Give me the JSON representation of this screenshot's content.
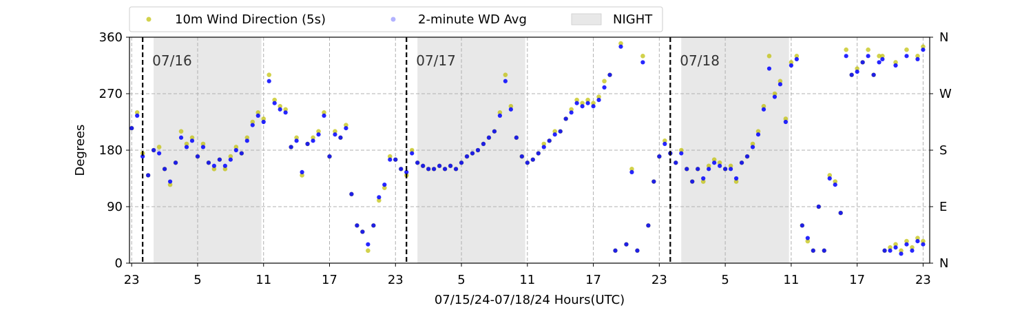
{
  "chart_data": {
    "type": "scatter",
    "title": "",
    "xlabel": "07/15/24-07/18/24  Hours(UTC)",
    "ylabel": "Degrees",
    "xlim": [
      -0.2,
      72.6
    ],
    "ylim": [
      0,
      360
    ],
    "x_unit": "hours since 07/15/24 23:00 UTC",
    "x_ticks": [
      0,
      6,
      12,
      18,
      24,
      30,
      36,
      42,
      48,
      54,
      60,
      66,
      72
    ],
    "x_tick_labels": [
      "23",
      "5",
      "11",
      "17",
      "23",
      "5",
      "11",
      "17",
      "23",
      "5",
      "11",
      "17",
      "23"
    ],
    "y_ticks": [
      0,
      90,
      180,
      270,
      360
    ],
    "y_tick_labels": [
      "0",
      "90",
      "180",
      "270",
      "360"
    ],
    "y2_tick_labels": [
      "N",
      "E",
      "S",
      "W",
      "N"
    ],
    "grid": true,
    "legend_position": "top-left, above plot",
    "legend": [
      {
        "label": "10m Wind Direction (5s)",
        "color": "#bfbf00",
        "marker": "dot"
      },
      {
        "label": "2-minute WD Avg",
        "color": "#0000ff",
        "marker": "dot"
      },
      {
        "label": "NIGHT",
        "color": "#d9d9d9",
        "marker": "patch"
      }
    ],
    "day_markers": [
      {
        "x": 1.0,
        "label": "07/16"
      },
      {
        "x": 25.0,
        "label": "07/17"
      },
      {
        "x": 49.0,
        "label": "07/18"
      }
    ],
    "night_spans": [
      [
        2,
        11.8
      ],
      [
        26,
        35.8
      ],
      [
        50,
        59.8
      ]
    ],
    "series": [
      {
        "name": "10m Wind Direction (5s)",
        "color": "#bfbf00",
        "points": [
          [
            0,
            215
          ],
          [
            0.5,
            240
          ],
          [
            1,
            175
          ],
          [
            1.5,
            140
          ],
          [
            2,
            180
          ],
          [
            2.5,
            185
          ],
          [
            3,
            150
          ],
          [
            3.5,
            125
          ],
          [
            4,
            160
          ],
          [
            4.5,
            210
          ],
          [
            5,
            190
          ],
          [
            5.5,
            200
          ],
          [
            6,
            170
          ],
          [
            6.5,
            190
          ],
          [
            7,
            160
          ],
          [
            7.5,
            150
          ],
          [
            8,
            165
          ],
          [
            8.5,
            150
          ],
          [
            9,
            170
          ],
          [
            9.5,
            185
          ],
          [
            10,
            175
          ],
          [
            10.5,
            200
          ],
          [
            11,
            225
          ],
          [
            11.5,
            240
          ],
          [
            12,
            230
          ],
          [
            12.5,
            300
          ],
          [
            13,
            260
          ],
          [
            13.5,
            250
          ],
          [
            14,
            245
          ],
          [
            14.5,
            185
          ],
          [
            15,
            200
          ],
          [
            15.5,
            140
          ],
          [
            16,
            190
          ],
          [
            16.5,
            200
          ],
          [
            17,
            210
          ],
          [
            17.5,
            240
          ],
          [
            18,
            170
          ],
          [
            18.5,
            210
          ],
          [
            19,
            200
          ],
          [
            19.5,
            220
          ],
          [
            20,
            110
          ],
          [
            20.5,
            60
          ],
          [
            21,
            50
          ],
          [
            21.5,
            20
          ],
          [
            22,
            60
          ],
          [
            22.5,
            100
          ],
          [
            23,
            120
          ],
          [
            23.5,
            170
          ],
          [
            24,
            165
          ],
          [
            24.5,
            150
          ],
          [
            25,
            140
          ],
          [
            25.5,
            180
          ],
          [
            26,
            160
          ],
          [
            26.5,
            155
          ],
          [
            27,
            150
          ],
          [
            27.5,
            150
          ],
          [
            28,
            155
          ],
          [
            28.5,
            150
          ],
          [
            29,
            155
          ],
          [
            29.5,
            150
          ],
          [
            30,
            160
          ],
          [
            30.5,
            170
          ],
          [
            31,
            175
          ],
          [
            31.5,
            180
          ],
          [
            32,
            190
          ],
          [
            32.5,
            200
          ],
          [
            33,
            210
          ],
          [
            33.5,
            240
          ],
          [
            34,
            300
          ],
          [
            34.5,
            250
          ],
          [
            35,
            200
          ],
          [
            35.5,
            170
          ],
          [
            36,
            160
          ],
          [
            36.5,
            165
          ],
          [
            37,
            175
          ],
          [
            37.5,
            190
          ],
          [
            38,
            195
          ],
          [
            38.5,
            210
          ],
          [
            39,
            210
          ],
          [
            39.5,
            230
          ],
          [
            40,
            245
          ],
          [
            40.5,
            260
          ],
          [
            41,
            255
          ],
          [
            41.5,
            260
          ],
          [
            42,
            255
          ],
          [
            42.5,
            265
          ],
          [
            43,
            290
          ],
          [
            43.5,
            300
          ],
          [
            44,
            20
          ],
          [
            44.5,
            350
          ],
          [
            45,
            30
          ],
          [
            45.5,
            150
          ],
          [
            46,
            20
          ],
          [
            46.5,
            330
          ],
          [
            47,
            60
          ],
          [
            47.5,
            130
          ],
          [
            48,
            170
          ],
          [
            48.5,
            195
          ],
          [
            49,
            175
          ],
          [
            49.5,
            160
          ],
          [
            50,
            180
          ],
          [
            50.5,
            150
          ],
          [
            51,
            130
          ],
          [
            51.5,
            150
          ],
          [
            52,
            130
          ],
          [
            52.5,
            155
          ],
          [
            53,
            165
          ],
          [
            53.5,
            160
          ],
          [
            54,
            150
          ],
          [
            54.5,
            155
          ],
          [
            55,
            130
          ],
          [
            55.5,
            160
          ],
          [
            56,
            170
          ],
          [
            56.5,
            190
          ],
          [
            57,
            210
          ],
          [
            57.5,
            250
          ],
          [
            58,
            330
          ],
          [
            58.5,
            270
          ],
          [
            59,
            290
          ],
          [
            59.5,
            230
          ],
          [
            60,
            320
          ],
          [
            60.5,
            330
          ],
          [
            61,
            60
          ],
          [
            61.5,
            35
          ],
          [
            62,
            20
          ],
          [
            62.5,
            90
          ],
          [
            63,
            20
          ],
          [
            63.5,
            140
          ],
          [
            64,
            130
          ],
          [
            64.5,
            80
          ],
          [
            65,
            340
          ],
          [
            65.5,
            300
          ],
          [
            66,
            310
          ],
          [
            66.5,
            320
          ],
          [
            67,
            340
          ],
          [
            67.5,
            300
          ],
          [
            68,
            330
          ],
          [
            68.5,
            20
          ],
          [
            69,
            25
          ],
          [
            69.5,
            30
          ],
          [
            70,
            20
          ],
          [
            70.5,
            35
          ],
          [
            71,
            25
          ],
          [
            71.5,
            40
          ],
          [
            72,
            35
          ],
          [
            68.3,
            330
          ],
          [
            69.5,
            320
          ],
          [
            70.5,
            340
          ],
          [
            71.5,
            330
          ],
          [
            72,
            345
          ]
        ]
      },
      {
        "name": "2-minute WD Avg",
        "color": "#0000ff",
        "points": [
          [
            0,
            215
          ],
          [
            0.5,
            235
          ],
          [
            1,
            170
          ],
          [
            1.5,
            140
          ],
          [
            2,
            180
          ],
          [
            2.5,
            175
          ],
          [
            3,
            150
          ],
          [
            3.5,
            130
          ],
          [
            4,
            160
          ],
          [
            4.5,
            200
          ],
          [
            5,
            185
          ],
          [
            5.5,
            195
          ],
          [
            6,
            170
          ],
          [
            6.5,
            185
          ],
          [
            7,
            160
          ],
          [
            7.5,
            155
          ],
          [
            8,
            165
          ],
          [
            8.5,
            155
          ],
          [
            9,
            165
          ],
          [
            9.5,
            180
          ],
          [
            10,
            175
          ],
          [
            10.5,
            195
          ],
          [
            11,
            220
          ],
          [
            11.5,
            235
          ],
          [
            12,
            225
          ],
          [
            12.5,
            290
          ],
          [
            13,
            255
          ],
          [
            13.5,
            245
          ],
          [
            14,
            240
          ],
          [
            14.5,
            185
          ],
          [
            15,
            195
          ],
          [
            15.5,
            145
          ],
          [
            16,
            190
          ],
          [
            16.5,
            195
          ],
          [
            17,
            205
          ],
          [
            17.5,
            235
          ],
          [
            18,
            170
          ],
          [
            18.5,
            205
          ],
          [
            19,
            200
          ],
          [
            19.5,
            215
          ],
          [
            20,
            110
          ],
          [
            20.5,
            60
          ],
          [
            21,
            50
          ],
          [
            21.5,
            30
          ],
          [
            22,
            60
          ],
          [
            22.5,
            105
          ],
          [
            23,
            125
          ],
          [
            23.5,
            165
          ],
          [
            24,
            165
          ],
          [
            24.5,
            150
          ],
          [
            25,
            145
          ],
          [
            25.5,
            175
          ],
          [
            26,
            160
          ],
          [
            26.5,
            155
          ],
          [
            27,
            150
          ],
          [
            27.5,
            150
          ],
          [
            28,
            155
          ],
          [
            28.5,
            150
          ],
          [
            29,
            155
          ],
          [
            29.5,
            150
          ],
          [
            30,
            160
          ],
          [
            30.5,
            170
          ],
          [
            31,
            175
          ],
          [
            31.5,
            180
          ],
          [
            32,
            190
          ],
          [
            32.5,
            200
          ],
          [
            33,
            210
          ],
          [
            33.5,
            235
          ],
          [
            34,
            290
          ],
          [
            34.5,
            245
          ],
          [
            35,
            200
          ],
          [
            35.5,
            170
          ],
          [
            36,
            160
          ],
          [
            36.5,
            165
          ],
          [
            37,
            175
          ],
          [
            37.5,
            185
          ],
          [
            38,
            195
          ],
          [
            38.5,
            205
          ],
          [
            39,
            210
          ],
          [
            39.5,
            230
          ],
          [
            40,
            240
          ],
          [
            40.5,
            255
          ],
          [
            41,
            250
          ],
          [
            41.5,
            255
          ],
          [
            42,
            250
          ],
          [
            42.5,
            260
          ],
          [
            43,
            280
          ],
          [
            43.5,
            300
          ],
          [
            44,
            20
          ],
          [
            44.5,
            345
          ],
          [
            45,
            30
          ],
          [
            45.5,
            145
          ],
          [
            46,
            20
          ],
          [
            46.5,
            320
          ],
          [
            47,
            60
          ],
          [
            47.5,
            130
          ],
          [
            48,
            170
          ],
          [
            48.5,
            190
          ],
          [
            49,
            175
          ],
          [
            49.5,
            160
          ],
          [
            50,
            175
          ],
          [
            50.5,
            150
          ],
          [
            51,
            130
          ],
          [
            51.5,
            150
          ],
          [
            52,
            135
          ],
          [
            52.5,
            150
          ],
          [
            53,
            160
          ],
          [
            53.5,
            155
          ],
          [
            54,
            150
          ],
          [
            54.5,
            150
          ],
          [
            55,
            135
          ],
          [
            55.5,
            160
          ],
          [
            56,
            170
          ],
          [
            56.5,
            185
          ],
          [
            57,
            205
          ],
          [
            57.5,
            245
          ],
          [
            58,
            310
          ],
          [
            58.5,
            265
          ],
          [
            59,
            285
          ],
          [
            59.5,
            225
          ],
          [
            60,
            315
          ],
          [
            60.5,
            325
          ],
          [
            61,
            60
          ],
          [
            61.5,
            40
          ],
          [
            62,
            20
          ],
          [
            62.5,
            90
          ],
          [
            63,
            20
          ],
          [
            63.5,
            135
          ],
          [
            64,
            125
          ],
          [
            64.5,
            80
          ],
          [
            65,
            330
          ],
          [
            65.5,
            300
          ],
          [
            66,
            305
          ],
          [
            66.5,
            320
          ],
          [
            67,
            330
          ],
          [
            67.5,
            300
          ],
          [
            68,
            320
          ],
          [
            68.5,
            20
          ],
          [
            69,
            20
          ],
          [
            69.5,
            25
          ],
          [
            70,
            15
          ],
          [
            70.5,
            30
          ],
          [
            71,
            20
          ],
          [
            71.5,
            35
          ],
          [
            72,
            30
          ],
          [
            68.3,
            325
          ],
          [
            69.5,
            315
          ],
          [
            70.5,
            330
          ],
          [
            71.5,
            325
          ],
          [
            72,
            340
          ]
        ]
      }
    ]
  }
}
